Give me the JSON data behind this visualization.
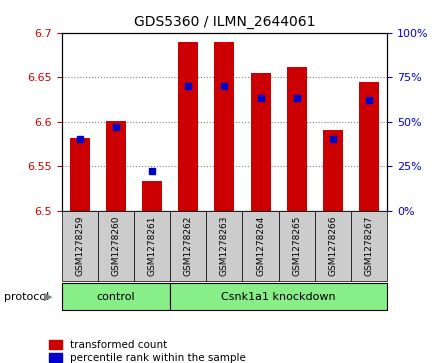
{
  "title": "GDS5360 / ILMN_2644061",
  "samples": [
    "GSM1278259",
    "GSM1278260",
    "GSM1278261",
    "GSM1278262",
    "GSM1278263",
    "GSM1278264",
    "GSM1278265",
    "GSM1278266",
    "GSM1278267"
  ],
  "transformed_count": [
    6.582,
    6.601,
    6.533,
    6.689,
    6.689,
    6.655,
    6.661,
    6.591,
    6.645
  ],
  "percentile_rank": [
    40,
    47,
    22,
    70,
    70,
    63,
    63,
    40,
    62
  ],
  "ylim_left": [
    6.5,
    6.7
  ],
  "ylim_right": [
    0,
    100
  ],
  "yticks_left": [
    6.5,
    6.55,
    6.6,
    6.65,
    6.7
  ],
  "yticks_right": [
    0,
    25,
    50,
    75,
    100
  ],
  "bar_color": "#cc0000",
  "percentile_color": "#0000cc",
  "bar_base": 6.5,
  "n_control": 3,
  "control_label": "control",
  "knockdown_label": "Csnk1a1 knockdown",
  "protocol_label": "protocol",
  "legend_items": [
    "transformed count",
    "percentile rank within the sample"
  ],
  "group_bg_color": "#88ee88",
  "tick_bg_color": "#cccccc",
  "left_axis_color": "#cc0000",
  "right_axis_color": "#0000cc",
  "bar_width": 0.55,
  "figsize": [
    4.4,
    3.63
  ],
  "dpi": 100
}
